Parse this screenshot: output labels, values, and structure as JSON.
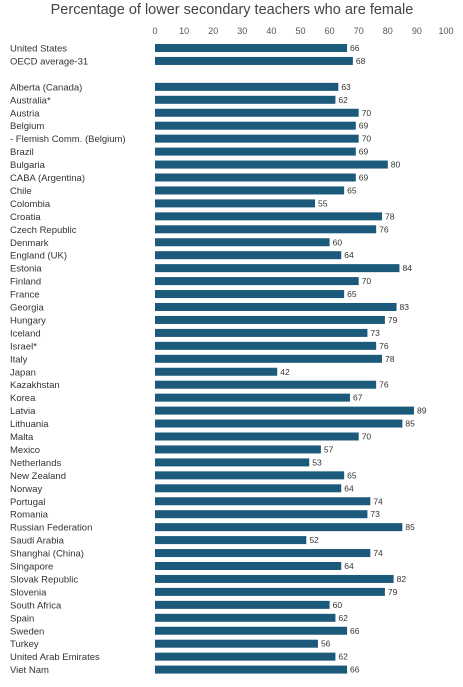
{
  "chart_data": {
    "type": "bar",
    "orientation": "horizontal",
    "title": "Percentage of lower secondary teachers who are female",
    "xlabel": "",
    "ylabel": "",
    "xlim": [
      0,
      100
    ],
    "xticks": [
      0,
      10,
      20,
      30,
      40,
      50,
      60,
      70,
      80,
      90,
      100
    ],
    "xaxis_position": "top",
    "grid": false,
    "legend": "none",
    "bar_color": "#1b5a7a",
    "categories": [
      "United States",
      "OECD average-31",
      "",
      "Alberta (Canada)",
      "Australia*",
      "Austria",
      "Belgium",
      "- Flemish Comm. (Belgium)",
      "Brazil",
      "Bulgaria",
      "CABA (Argentina)",
      "Chile",
      "Colombia",
      "Croatia",
      "Czech Republic",
      "Denmark",
      "England (UK)",
      "Estonia",
      "Finland",
      "France",
      "Georgia",
      "Hungary",
      "Iceland",
      "Israel*",
      "Italy",
      "Japan",
      "Kazakhstan",
      "Korea",
      "Latvia",
      "Lithuania",
      "Malta",
      "Mexico",
      "Netherlands",
      "New Zealand",
      "Norway",
      "Portugal",
      "Romania",
      "Russian Federation",
      "Saudi Arabia",
      "Shanghai (China)",
      "Singapore",
      "Slovak Republic",
      "Slovenia",
      "South Africa",
      "Spain",
      "Sweden",
      "Turkey",
      "United Arab Emirates",
      "Viet Nam"
    ],
    "values": [
      66,
      68,
      null,
      63,
      62,
      70,
      69,
      70,
      69,
      80,
      69,
      65,
      55,
      78,
      76,
      60,
      64,
      84,
      70,
      65,
      83,
      79,
      73,
      76,
      78,
      42,
      76,
      67,
      89,
      85,
      70,
      57,
      53,
      65,
      64,
      74,
      73,
      85,
      52,
      74,
      64,
      82,
      79,
      60,
      62,
      66,
      56,
      62,
      66
    ]
  }
}
